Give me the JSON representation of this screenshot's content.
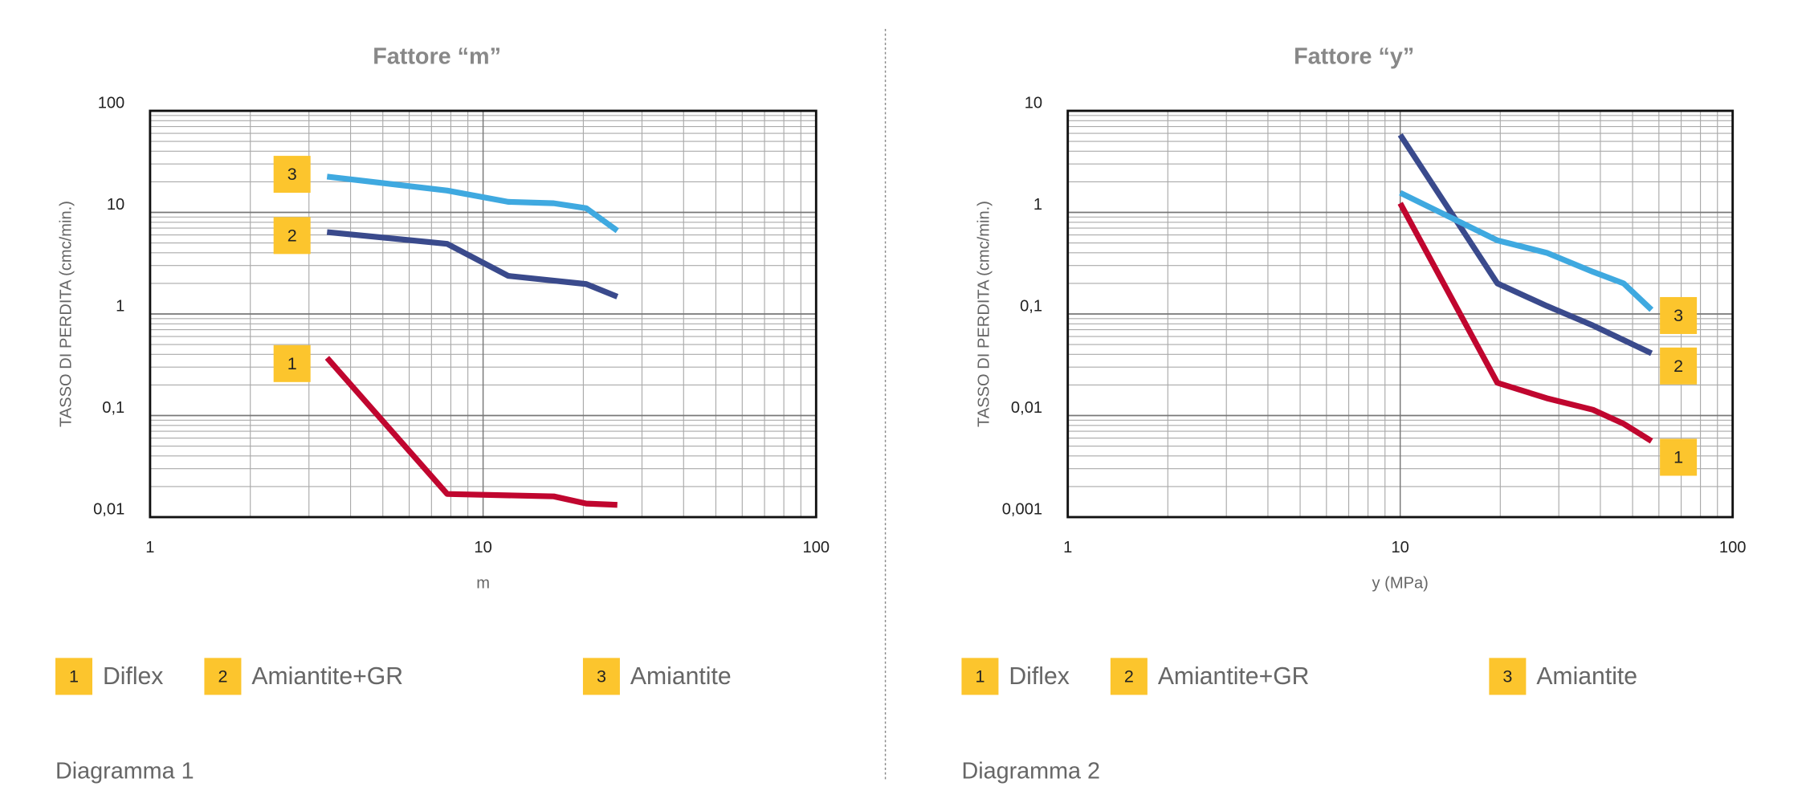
{
  "chart_data": [
    {
      "type": "line",
      "title": "Fattore “m”",
      "x_label": "m",
      "y_label": "TASSO DI PERDITA (cmc/min.)",
      "caption": "Diagramma 1",
      "log_x": true,
      "log_y": true,
      "grid": true,
      "xlim": [
        1,
        100
      ],
      "xticks": [
        1,
        10,
        100
      ],
      "ylim": [
        0.01,
        100
      ],
      "yticks": [
        {
          "value": 0.01,
          "label": "0,01"
        },
        {
          "value": 0.1,
          "label": "0,1"
        },
        1,
        10,
        100
      ],
      "series": [
        {
          "name": "Diflex",
          "label": "1",
          "color": "#c0062f",
          "x": [
            3.4,
            7.8,
            16.3,
            20.4,
            25.3
          ],
          "values": [
            0.37,
            0.0169,
            0.016,
            0.0136,
            0.0132
          ]
        },
        {
          "name": "Amiantite+GR",
          "label": "2",
          "color": "#3a4a8c",
          "x": [
            3.4,
            7.8,
            11.9,
            20.4,
            25.3
          ],
          "values": [
            6.4,
            4.9,
            2.37,
            1.97,
            1.48
          ]
        },
        {
          "name": "Amiantite",
          "label": "3",
          "color": "#3fa9e0",
          "x": [
            3.4,
            7.8,
            11.9,
            16.3,
            20.4,
            25.3
          ],
          "values": [
            22.5,
            16.4,
            12.7,
            12.3,
            11,
            6.6
          ]
        }
      ]
    },
    {
      "type": "line",
      "title": "Fattore “y”",
      "x_label": "y (MPa)",
      "y_label": "TASSO DI PERDITA (cmc/min.)",
      "caption": "Diagramma 2",
      "log_x": true,
      "log_y": true,
      "grid": true,
      "xlim": [
        1,
        100
      ],
      "xticks": [
        1,
        10,
        100
      ],
      "ylim": [
        0.001,
        10
      ],
      "yticks": [
        {
          "value": 0.001,
          "label": "0,001"
        },
        {
          "value": 0.01,
          "label": "0,01"
        },
        {
          "value": 0.1,
          "label": "0,1"
        },
        1,
        10
      ],
      "series": [
        {
          "name": "Diflex",
          "label": "1",
          "color": "#c0062f",
          "x": [
            10,
            19.6,
            27.6,
            38,
            47,
            57
          ],
          "values": [
            1.23,
            0.021,
            0.0148,
            0.0114,
            0.0083,
            0.0056
          ]
        },
        {
          "name": "Amiantite+GR",
          "label": "2",
          "color": "#3a4a8c",
          "x": [
            10,
            19.6,
            27.6,
            38,
            57
          ],
          "values": [
            5.8,
            0.2,
            0.12,
            0.077,
            0.041
          ]
        },
        {
          "name": "Amiantite",
          "label": "3",
          "color": "#3fa9e0",
          "x": [
            10,
            19.6,
            27.6,
            38,
            47,
            57
          ],
          "values": [
            1.56,
            0.53,
            0.4,
            0.26,
            0.2,
            0.11
          ]
        }
      ]
    }
  ]
}
